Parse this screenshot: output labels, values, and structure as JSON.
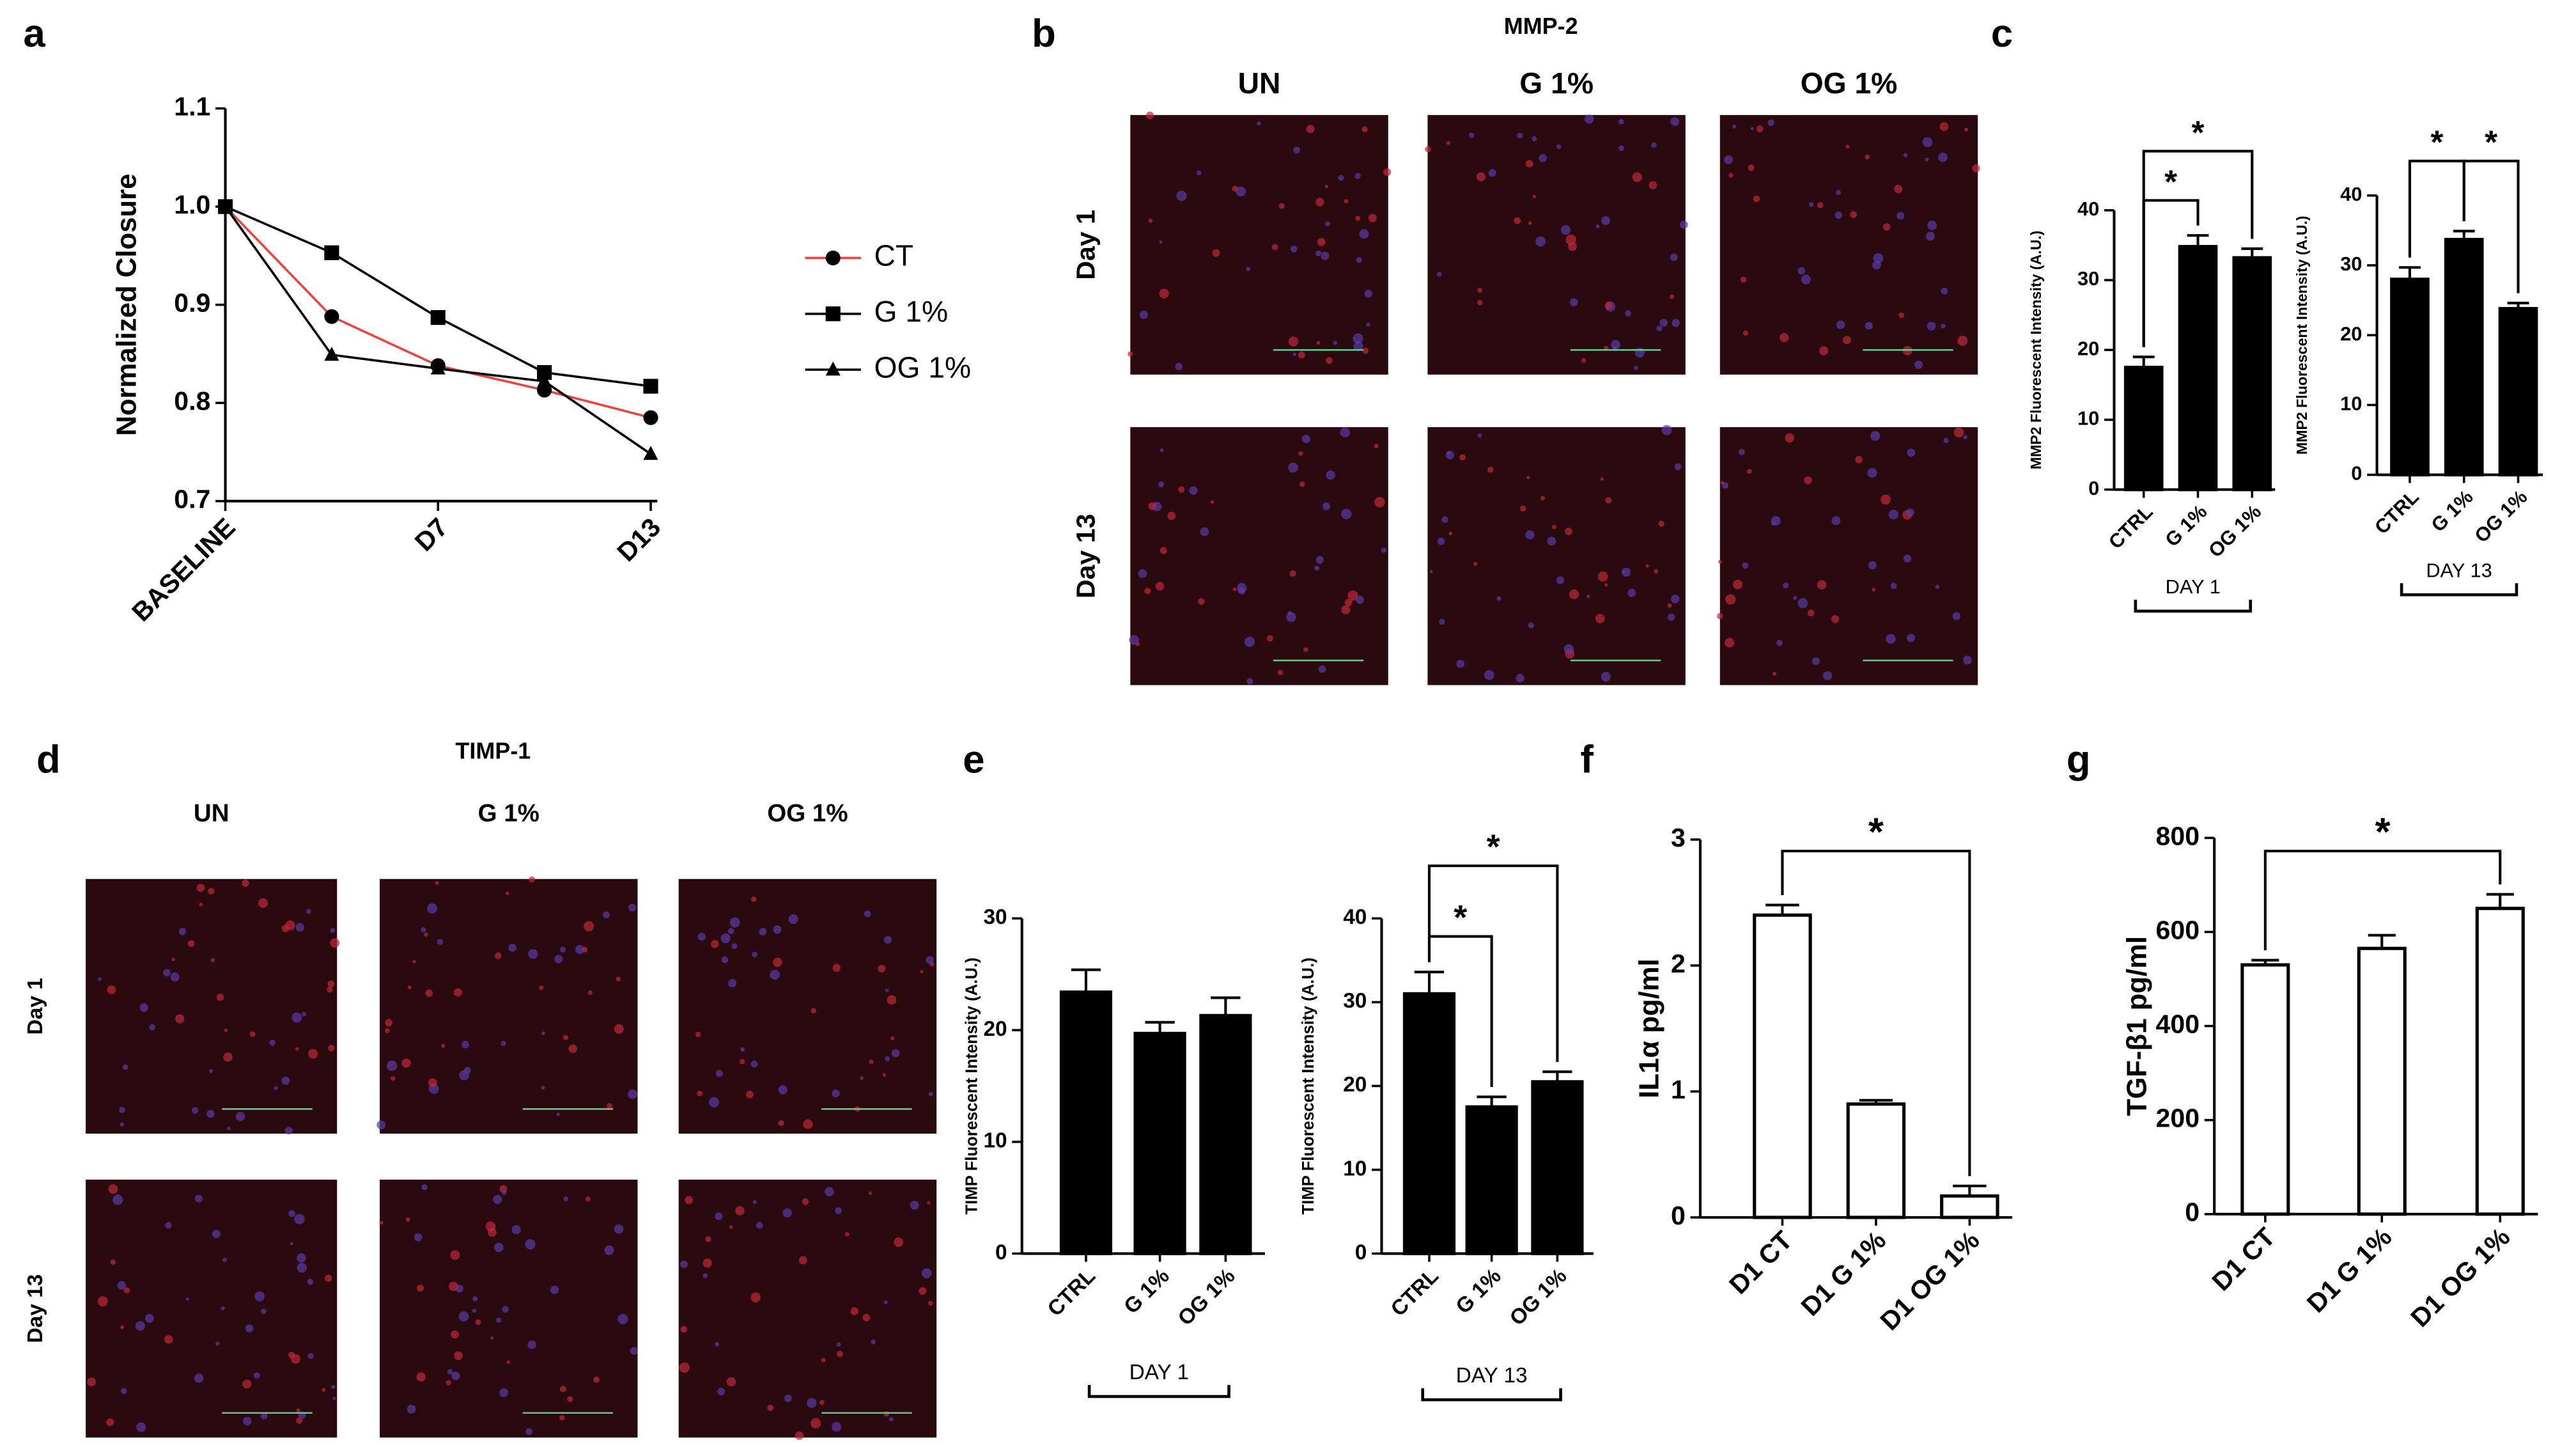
{
  "chart_data": [
    {
      "type": "line",
      "panel": "a",
      "y_label": "Normalized Closure",
      "categories": [
        "BASELINE",
        null,
        "D7",
        null,
        "D13"
      ],
      "ylim": [
        0.7,
        1.1
      ],
      "yticks": [
        0.7,
        0.8,
        0.9,
        {
          "value": 1.0,
          "label": "1.0"
        },
        1.1
      ],
      "marker_color": "#000000",
      "series": [
        {
          "name": "CT",
          "color": "#e8453c",
          "marker": "circle",
          "values": [
            1.0,
            0.888,
            0.838,
            0.813,
            0.785
          ]
        },
        {
          "name": "G 1%",
          "color": "#000000",
          "marker": "square",
          "values": [
            1.0,
            0.953,
            0.887,
            0.831,
            0.817
          ]
        },
        {
          "name": "OG 1%",
          "color": "#000000",
          "marker": "triangle",
          "values": [
            1.0,
            0.849,
            0.835,
            0.822,
            0.748
          ]
        }
      ]
    },
    {
      "type": "bar",
      "panel": "c",
      "y_label": "MMP2 Fluorescent Intensity (A.U.)",
      "group_label": "DAY 1",
      "categories": [
        "CTRL",
        "G 1%",
        "OG 1%"
      ],
      "values": [
        17.5,
        34.8,
        33.2
      ],
      "errors": [
        1.5,
        1.6,
        1.3
      ],
      "color": "#000000",
      "ylim": [
        0,
        40
      ],
      "yticks": [
        0,
        10,
        20,
        30,
        40
      ],
      "significance": [
        {
          "pair": [
            0,
            1
          ],
          "label": "*"
        },
        {
          "pair": [
            0,
            2
          ],
          "label": "*"
        }
      ]
    },
    {
      "type": "bar",
      "y_label": "MMP2 Fluorescent Intensity (A.U.)",
      "group_label": "DAY 13",
      "categories": [
        "CTRL",
        "G 1%",
        "OG 1%"
      ],
      "values": [
        28.0,
        33.7,
        23.8
      ],
      "errors": [
        1.7,
        1.2,
        0.8
      ],
      "color": "#000000",
      "ylim": [
        0,
        40
      ],
      "yticks": [
        0,
        10,
        20,
        30,
        40
      ],
      "significance": [
        {
          "pair": [
            0,
            1
          ],
          "label": "*"
        },
        {
          "pair": [
            1,
            2
          ],
          "label": "*"
        }
      ]
    },
    {
      "type": "bar",
      "panel": "e",
      "y_label": "TIMP Fluorescent Intensity (A.U.)",
      "group_label": "DAY 1",
      "categories": [
        "CTRL",
        "G 1%",
        "OG 1%"
      ],
      "values": [
        23.4,
        19.7,
        21.3
      ],
      "errors": [
        2.0,
        1.0,
        1.6
      ],
      "color": "#000000",
      "ylim": [
        0,
        30
      ],
      "yticks": [
        0,
        10,
        20,
        30
      ]
    },
    {
      "type": "bar",
      "y_label": "TIMP Fluorescent Intensity (A.U.)",
      "group_label": "DAY 13",
      "categories": [
        "CTRL",
        "G 1%",
        "OG 1%"
      ],
      "values": [
        31.0,
        17.5,
        20.5
      ],
      "errors": [
        2.6,
        1.2,
        1.2
      ],
      "color": "#000000",
      "ylim": [
        0,
        40
      ],
      "yticks": [
        0,
        10,
        20,
        30,
        40
      ],
      "significance": [
        {
          "pair": [
            0,
            1
          ],
          "label": "*"
        },
        {
          "pair": [
            0,
            2
          ],
          "label": "*"
        }
      ]
    },
    {
      "type": "bar",
      "panel": "f",
      "y_label": "IL1α pg/ml",
      "categories": [
        "D1 CT",
        "D1 G 1%",
        "D1 OG 1%"
      ],
      "values": [
        2.4,
        0.9,
        0.17
      ],
      "errors": [
        0.08,
        0.03,
        0.08
      ],
      "color": "#ffffff",
      "ylim": [
        0,
        3
      ],
      "yticks": [
        0,
        1,
        2,
        3
      ],
      "significance": [
        {
          "pair": [
            0,
            2
          ],
          "label": "*"
        }
      ]
    },
    {
      "type": "bar",
      "panel": "g",
      "y_label": "TGF-β1 pg/ml",
      "categories": [
        "D1 CT",
        "D1 G 1%",
        "D1 OG 1%"
      ],
      "values": [
        530,
        565,
        650
      ],
      "errors": [
        10,
        28,
        30
      ],
      "color": "#ffffff",
      "ylim": [
        0,
        800
      ],
      "yticks": [
        0,
        200,
        400,
        600,
        800
      ],
      "significance": [
        {
          "pair": [
            0,
            2
          ],
          "label": "*"
        }
      ]
    }
  ],
  "image_panels": [
    {
      "panel": "b",
      "title": "MMP-2",
      "columns": [
        "UN",
        "G 1%",
        "OG 1%"
      ],
      "rows": [
        "Day 1",
        "Day 13"
      ]
    },
    {
      "panel": "d",
      "title": "TIMP-1",
      "columns": [
        "UN",
        "G 1%",
        "OG 1%"
      ],
      "rows": [
        "Day 1",
        "Day 13"
      ]
    }
  ]
}
